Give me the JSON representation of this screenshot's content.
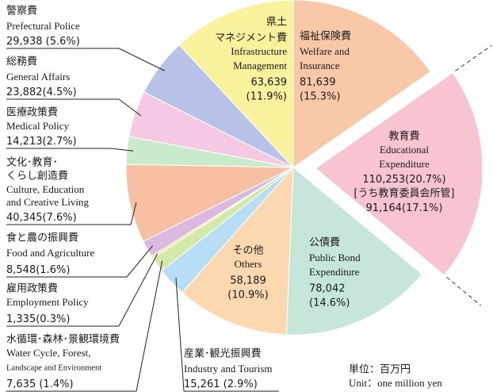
{
  "chart_data": {
    "type": "pie",
    "slices": [
      {
        "name_ja": [
          "福祉保険費"
        ],
        "name_en": [
          "Welfare and",
          "Insurance"
        ],
        "value": 81639,
        "value_label": "81,639",
        "percent_label": "(15.3%)",
        "color": "#f9c8a8"
      },
      {
        "name_ja": [
          "教育費"
        ],
        "name_en": [
          "Educational",
          "Expenditure"
        ],
        "value": 110253,
        "value_label": "110,253",
        "percent_label": "(20.7%)",
        "color": "#f8c4d2",
        "sub_label": "[うち教育委員会所管]",
        "sub_value": 91164,
        "sub_value_label": "91,164",
        "sub_percent_label": "(17.1%)"
      },
      {
        "name_ja": [
          "公債費"
        ],
        "name_en": [
          "Public Bond",
          "Expenditure"
        ],
        "value": 78042,
        "value_label": "78,042",
        "percent_label": "(14.6%)",
        "color": "#c6e6da"
      },
      {
        "name_ja": [
          "その他"
        ],
        "name_en": [
          "Others"
        ],
        "value": 58189,
        "value_label": "58,189",
        "percent_label": "(10.9%)",
        "color": "#fcd8b0"
      },
      {
        "name_ja": [
          "産業･観光振興費"
        ],
        "name_en": [
          "Industry and Tourism"
        ],
        "value": 15261,
        "value_label": "15,261",
        "percent_label": " (2.9%)",
        "color": "#b7def5"
      },
      {
        "name_ja": [
          "水循環･森林･景観環境費"
        ],
        "name_en": [
          "Water Cycle, Forest,",
          "Landscape and Environment"
        ],
        "value": 7635,
        "value_label": "7,635",
        "percent_label": " (1.4%)",
        "color": "#d2e9a8"
      },
      {
        "name_ja": [
          "雇用政策費"
        ],
        "name_en": [
          "Employment Policy"
        ],
        "value": 1335,
        "value_label": "1,335",
        "percent_label": "(0.3%)",
        "color": "#ece99c"
      },
      {
        "name_ja": [
          "食と農の振興費"
        ],
        "name_en": [
          "Food and Agriculture"
        ],
        "value": 8548,
        "value_label": "8,548",
        "percent_label": "(1.6%)",
        "color": "#dcb9e0"
      },
      {
        "name_ja": [
          "文化･教育･",
          "くらし創造費"
        ],
        "name_en": [
          "Culture, Education",
          "and Creative Living"
        ],
        "value": 40345,
        "value_label": "40,345",
        "percent_label": "(7.6%)",
        "color": "#f8c0a2"
      },
      {
        "name_ja": [
          "医療政策費"
        ],
        "name_en": [
          "Medical Policy"
        ],
        "value": 14213,
        "value_label": "14,213",
        "percent_label": "(2.7%)",
        "color": "#c9ebcb"
      },
      {
        "name_ja": [
          "総務費"
        ],
        "name_en": [
          "General Affairs"
        ],
        "value": 23882,
        "value_label": "23,882",
        "percent_label": "(4.5%)",
        "color": "#f5c9e3"
      },
      {
        "name_ja": [
          "警察費"
        ],
        "name_en": [
          "Prefectural Police"
        ],
        "value": 29938,
        "value_label": "29,938",
        "percent_label": " (5.6%)",
        "color": "#b9c2e8"
      },
      {
        "name_ja": [
          "県土",
          "マネジメント費"
        ],
        "name_en": [
          "Infrastructure",
          "Management"
        ],
        "value": 63639,
        "value_label": "63,639",
        "percent_label": "(11.9%)",
        "color": "#f8f29c"
      }
    ],
    "unit_ja": "単位：百万円",
    "unit_en": "Unit：one million yen"
  }
}
